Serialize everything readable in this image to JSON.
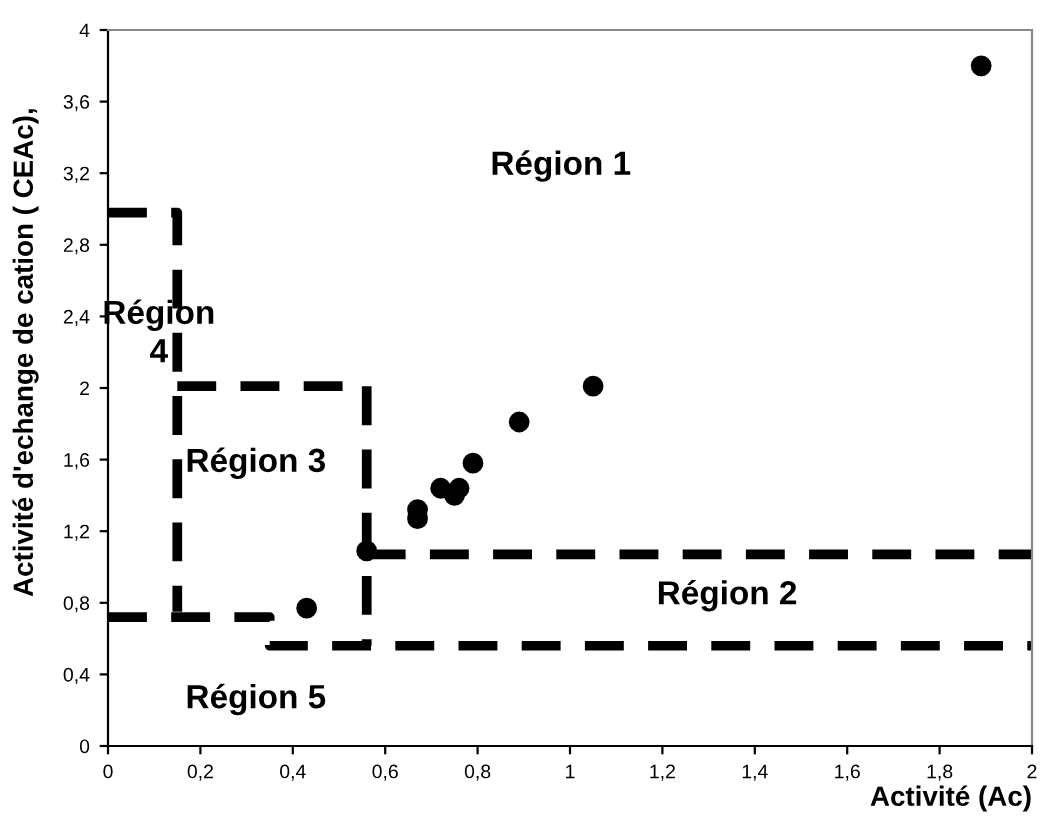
{
  "chart_data": {
    "type": "scatter",
    "xlabel": "Activité (Ac)",
    "ylabel": "Activité d'echange de cation ( CEAc),",
    "xlim": [
      0,
      2
    ],
    "ylim": [
      0,
      4
    ],
    "xticks": [
      0,
      {
        "value": 0.2,
        "label": "0,2"
      },
      {
        "value": 0.4,
        "label": "0,4"
      },
      {
        "value": 0.6,
        "label": "0,6"
      },
      {
        "value": 0.8,
        "label": "0,8"
      },
      1,
      {
        "value": 1.2,
        "label": "1,2"
      },
      {
        "value": 1.4,
        "label": "1,4"
      },
      {
        "value": 1.6,
        "label": "1,6"
      },
      {
        "value": 1.8,
        "label": "1,8"
      },
      2
    ],
    "yticks": [
      0,
      {
        "value": 0.4,
        "label": "0,4"
      },
      {
        "value": 0.8,
        "label": "0,8"
      },
      {
        "value": 1.2,
        "label": "1,2"
      },
      {
        "value": 1.6,
        "label": "1,6"
      },
      2,
      {
        "value": 2.4,
        "label": "2,4"
      },
      {
        "value": 2.8,
        "label": "2,8"
      },
      {
        "value": 3.2,
        "label": "3,2"
      },
      {
        "value": 3.6,
        "label": "3,6"
      },
      4
    ],
    "grid": false,
    "marker": "circle",
    "series": [
      {
        "color": "#000000",
        "x": [
          0.43,
          0.56,
          0.67,
          0.67,
          0.72,
          0.75,
          0.76,
          0.79,
          0.89,
          1.05,
          1.89
        ],
        "values": [
          0.77,
          1.09,
          1.27,
          1.32,
          1.44,
          1.4,
          1.44,
          1.58,
          1.81,
          2.01,
          3.8
        ]
      },
      {
        "type": "line",
        "line_style": "dashed",
        "marker": "none",
        "color": "#000000",
        "x": [
          0,
          0.15,
          0.15
        ],
        "values": [
          2.98,
          2.98,
          0.75
        ]
      },
      {
        "type": "line",
        "line_style": "dashed",
        "marker": "none",
        "color": "#000000",
        "x": [
          0,
          0.35,
          0.35,
          2
        ],
        "values": [
          0.72,
          0.72,
          0.56,
          0.56
        ]
      },
      {
        "type": "line",
        "line_style": "dashed",
        "marker": "none",
        "color": "#000000",
        "x": [
          0.15,
          0.56,
          0.56
        ],
        "values": [
          2.01,
          2.01,
          0.56
        ]
      },
      {
        "type": "line",
        "line_style": "dashed",
        "marker": "none",
        "color": "#000000",
        "x": [
          0.56,
          2
        ],
        "values": [
          1.07,
          1.07
        ]
      }
    ],
    "annotations": [
      "Région 1",
      "Région 2",
      "Région 3",
      "Région\n4",
      "Région 5"
    ]
  }
}
